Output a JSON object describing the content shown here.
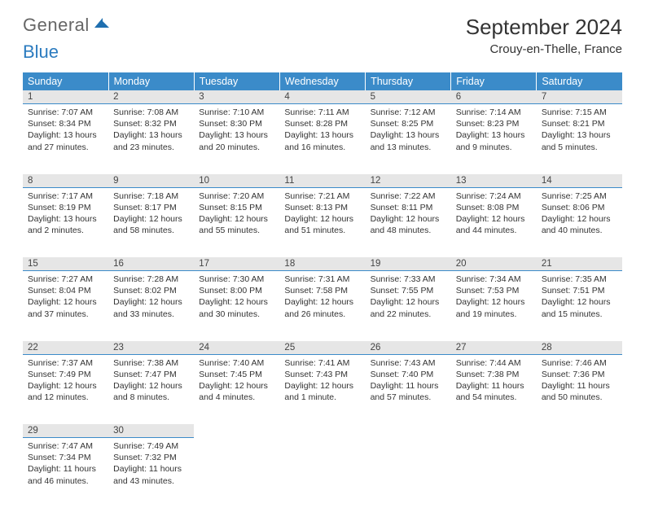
{
  "logo": {
    "text1": "General",
    "text2": "Blue"
  },
  "title": "September 2024",
  "location": "Crouy-en-Thelle, France",
  "colors": {
    "header_bg": "#3b8bc9",
    "header_text": "#ffffff",
    "daynum_bg": "#e6e6e6",
    "border": "#3b8bc9",
    "body_text": "#333333",
    "logo_gray": "#666666",
    "logo_blue": "#2b7bbf",
    "page_bg": "#ffffff"
  },
  "fonts": {
    "title_size_pt": 20,
    "location_size_pt": 11,
    "header_size_pt": 9.5,
    "daynum_size_pt": 8.5,
    "cell_size_pt": 8
  },
  "weekdays": [
    "Sunday",
    "Monday",
    "Tuesday",
    "Wednesday",
    "Thursday",
    "Friday",
    "Saturday"
  ],
  "weeks": [
    [
      {
        "n": "1",
        "sunrise": "7:07 AM",
        "sunset": "8:34 PM",
        "daylight": "13 hours and 27 minutes."
      },
      {
        "n": "2",
        "sunrise": "7:08 AM",
        "sunset": "8:32 PM",
        "daylight": "13 hours and 23 minutes."
      },
      {
        "n": "3",
        "sunrise": "7:10 AM",
        "sunset": "8:30 PM",
        "daylight": "13 hours and 20 minutes."
      },
      {
        "n": "4",
        "sunrise": "7:11 AM",
        "sunset": "8:28 PM",
        "daylight": "13 hours and 16 minutes."
      },
      {
        "n": "5",
        "sunrise": "7:12 AM",
        "sunset": "8:25 PM",
        "daylight": "13 hours and 13 minutes."
      },
      {
        "n": "6",
        "sunrise": "7:14 AM",
        "sunset": "8:23 PM",
        "daylight": "13 hours and 9 minutes."
      },
      {
        "n": "7",
        "sunrise": "7:15 AM",
        "sunset": "8:21 PM",
        "daylight": "13 hours and 5 minutes."
      }
    ],
    [
      {
        "n": "8",
        "sunrise": "7:17 AM",
        "sunset": "8:19 PM",
        "daylight": "13 hours and 2 minutes."
      },
      {
        "n": "9",
        "sunrise": "7:18 AM",
        "sunset": "8:17 PM",
        "daylight": "12 hours and 58 minutes."
      },
      {
        "n": "10",
        "sunrise": "7:20 AM",
        "sunset": "8:15 PM",
        "daylight": "12 hours and 55 minutes."
      },
      {
        "n": "11",
        "sunrise": "7:21 AM",
        "sunset": "8:13 PM",
        "daylight": "12 hours and 51 minutes."
      },
      {
        "n": "12",
        "sunrise": "7:22 AM",
        "sunset": "8:11 PM",
        "daylight": "12 hours and 48 minutes."
      },
      {
        "n": "13",
        "sunrise": "7:24 AM",
        "sunset": "8:08 PM",
        "daylight": "12 hours and 44 minutes."
      },
      {
        "n": "14",
        "sunrise": "7:25 AM",
        "sunset": "8:06 PM",
        "daylight": "12 hours and 40 minutes."
      }
    ],
    [
      {
        "n": "15",
        "sunrise": "7:27 AM",
        "sunset": "8:04 PM",
        "daylight": "12 hours and 37 minutes."
      },
      {
        "n": "16",
        "sunrise": "7:28 AM",
        "sunset": "8:02 PM",
        "daylight": "12 hours and 33 minutes."
      },
      {
        "n": "17",
        "sunrise": "7:30 AM",
        "sunset": "8:00 PM",
        "daylight": "12 hours and 30 minutes."
      },
      {
        "n": "18",
        "sunrise": "7:31 AM",
        "sunset": "7:58 PM",
        "daylight": "12 hours and 26 minutes."
      },
      {
        "n": "19",
        "sunrise": "7:33 AM",
        "sunset": "7:55 PM",
        "daylight": "12 hours and 22 minutes."
      },
      {
        "n": "20",
        "sunrise": "7:34 AM",
        "sunset": "7:53 PM",
        "daylight": "12 hours and 19 minutes."
      },
      {
        "n": "21",
        "sunrise": "7:35 AM",
        "sunset": "7:51 PM",
        "daylight": "12 hours and 15 minutes."
      }
    ],
    [
      {
        "n": "22",
        "sunrise": "7:37 AM",
        "sunset": "7:49 PM",
        "daylight": "12 hours and 12 minutes."
      },
      {
        "n": "23",
        "sunrise": "7:38 AM",
        "sunset": "7:47 PM",
        "daylight": "12 hours and 8 minutes."
      },
      {
        "n": "24",
        "sunrise": "7:40 AM",
        "sunset": "7:45 PM",
        "daylight": "12 hours and 4 minutes."
      },
      {
        "n": "25",
        "sunrise": "7:41 AM",
        "sunset": "7:43 PM",
        "daylight": "12 hours and 1 minute."
      },
      {
        "n": "26",
        "sunrise": "7:43 AM",
        "sunset": "7:40 PM",
        "daylight": "11 hours and 57 minutes."
      },
      {
        "n": "27",
        "sunrise": "7:44 AM",
        "sunset": "7:38 PM",
        "daylight": "11 hours and 54 minutes."
      },
      {
        "n": "28",
        "sunrise": "7:46 AM",
        "sunset": "7:36 PM",
        "daylight": "11 hours and 50 minutes."
      }
    ],
    [
      {
        "n": "29",
        "sunrise": "7:47 AM",
        "sunset": "7:34 PM",
        "daylight": "11 hours and 46 minutes."
      },
      {
        "n": "30",
        "sunrise": "7:49 AM",
        "sunset": "7:32 PM",
        "daylight": "11 hours and 43 minutes."
      },
      null,
      null,
      null,
      null,
      null
    ]
  ],
  "labels": {
    "sunrise": "Sunrise:",
    "sunset": "Sunset:",
    "daylight": "Daylight:"
  }
}
